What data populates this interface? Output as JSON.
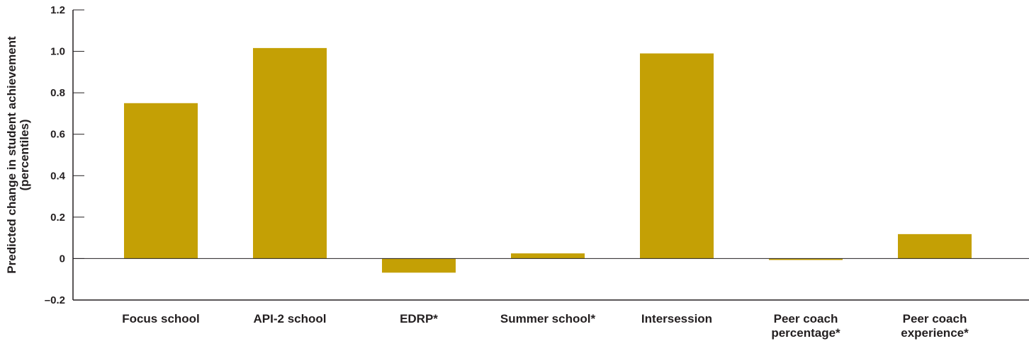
{
  "chart_data": {
    "type": "bar",
    "categories": [
      [
        "Focus school"
      ],
      [
        "API-2 school"
      ],
      [
        "EDRP*"
      ],
      [
        "Summer school*"
      ],
      [
        "Intersession"
      ],
      [
        "Peer coach",
        "percentage*"
      ],
      [
        "Peer coach",
        "experience*"
      ]
    ],
    "values": [
      0.75,
      1.016,
      -0.068,
      0.025,
      0.99,
      -0.006,
      0.118
    ],
    "ylabel": [
      "Predicted change in student achievement",
      "(percentiles)"
    ],
    "ylim": [
      -0.2,
      1.2
    ],
    "yticks": [
      -0.2,
      0,
      0.2,
      0.4,
      0.6,
      0.8,
      1.0,
      1.2
    ],
    "ytick_labels": [
      "–0.2",
      "0",
      "0.2",
      "0.4",
      "0.6",
      "0.8",
      "1.0",
      "1.2"
    ],
    "grid": false,
    "bar_color": "#c4a005",
    "axis_color": "#231f20"
  }
}
